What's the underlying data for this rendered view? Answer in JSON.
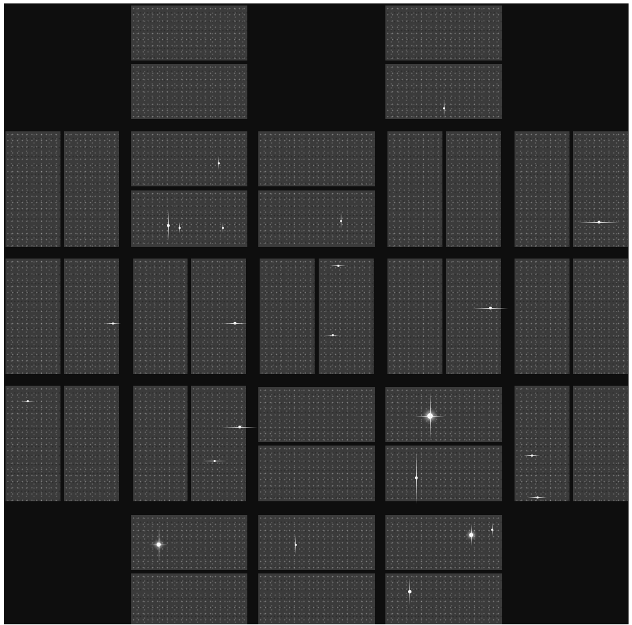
{
  "image": {
    "subject": "mosaic-of-ccd-modules",
    "colors": {
      "background": "#0e0e0e",
      "chip": "#3b3b3b",
      "star": "#ffffff"
    }
  }
}
